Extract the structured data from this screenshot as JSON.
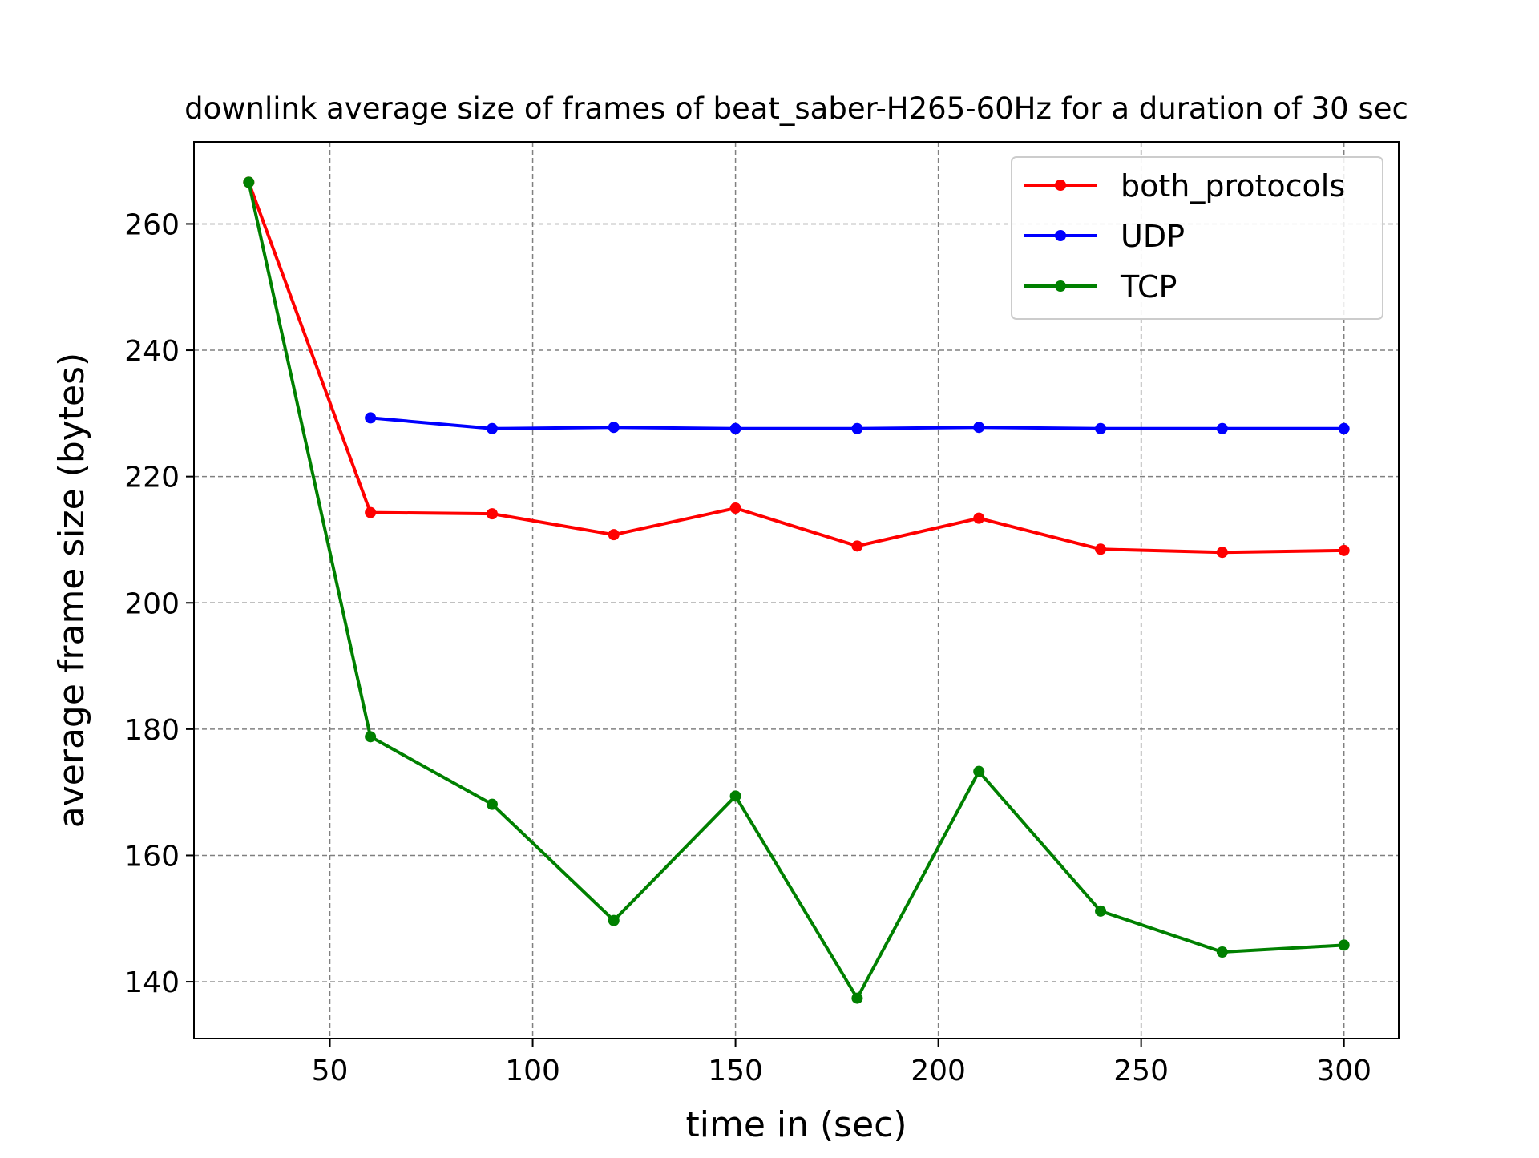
{
  "chart_data": {
    "type": "line",
    "title": "downlink average size of frames of beat_saber-H265-60Hz for a duration of 30 sec",
    "xlabel": "time in (sec)",
    "ylabel": "average frame size (bytes)",
    "xlim": [
      16.5,
      313.5
    ],
    "ylim": [
      131,
      273
    ],
    "xticks": [
      50,
      100,
      150,
      200,
      250,
      300
    ],
    "yticks": [
      140,
      160,
      180,
      200,
      220,
      240,
      260
    ],
    "grid": true,
    "legend_position": "top-right",
    "series": [
      {
        "name": "both_protocols",
        "color": "#ff0000",
        "x": [
          30,
          60,
          90,
          120,
          150,
          180,
          210,
          240,
          270,
          300
        ],
        "values": [
          266.6,
          214.3,
          214.1,
          210.8,
          215.0,
          209.0,
          213.4,
          208.5,
          208.0,
          208.3
        ]
      },
      {
        "name": "UDP",
        "color": "#0000ff",
        "x": [
          60,
          90,
          120,
          150,
          180,
          210,
          240,
          270,
          300
        ],
        "values": [
          229.3,
          227.6,
          227.8,
          227.6,
          227.6,
          227.8,
          227.6,
          227.6,
          227.6
        ]
      },
      {
        "name": "TCP",
        "color": "#008000",
        "x": [
          30,
          60,
          90,
          120,
          150,
          180,
          210,
          240,
          270,
          300
        ],
        "values": [
          266.6,
          178.8,
          168.1,
          149.7,
          169.4,
          137.4,
          173.3,
          151.2,
          144.7,
          145.8
        ]
      }
    ]
  }
}
